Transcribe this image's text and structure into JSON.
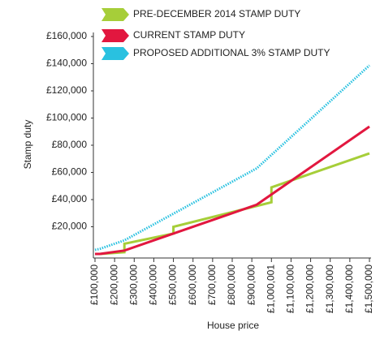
{
  "chart_data": {
    "type": "line",
    "xlabel": "House price",
    "ylabel": "Stamp duty",
    "xlim": [
      100000,
      1500000
    ],
    "xticks": [
      {
        "value": 100000,
        "label": "£100,000"
      },
      {
        "value": 200000,
        "label": "£200,000"
      },
      {
        "value": 300000,
        "label": "£300,000"
      },
      {
        "value": 400000,
        "label": "£400,000"
      },
      {
        "value": 500000,
        "label": "£500,000"
      },
      {
        "value": 600000,
        "label": "£600,000"
      },
      {
        "value": 700000,
        "label": "£700,000"
      },
      {
        "value": 800000,
        "label": "£800,000"
      },
      {
        "value": 900000,
        "label": "£900,000"
      },
      {
        "value": 1000001,
        "label": "£1,000,001"
      },
      {
        "value": 1100000,
        "label": "£1,100,000"
      },
      {
        "value": 1200000,
        "label": "£1,200,000"
      },
      {
        "value": 1300000,
        "label": "£1,300,000"
      },
      {
        "value": 1400000,
        "label": "£1,400,000"
      },
      {
        "value": 1500000,
        "label": "£1,500,000"
      }
    ],
    "ylim": [
      0,
      160000
    ],
    "yticks": [
      {
        "value": 20000,
        "label": "£20,000"
      },
      {
        "value": 40000,
        "label": "£40,000"
      },
      {
        "value": 60000,
        "label": "£60,000"
      },
      {
        "value": 80000,
        "label": "£80,000"
      },
      {
        "value": 100000,
        "label": "£100,000"
      },
      {
        "value": 120000,
        "label": "£120,000"
      },
      {
        "value": 140000,
        "label": "£140,000"
      },
      {
        "value": 160000,
        "label": "£160,000"
      }
    ],
    "series": [
      {
        "name": "PRE-DECEMBER 2014 STAMP DUTY",
        "color": "#a6ce39",
        "dash": false,
        "x": [
          100000,
          125000,
          250000,
          250001,
          500000,
          500001,
          1000000,
          1000001,
          1500000
        ],
        "values": [
          0,
          0,
          1250,
          7500,
          15000,
          20000,
          38000,
          49000,
          74000
        ]
      },
      {
        "name": "CURRENT STAMP DUTY",
        "color": "#e2173f",
        "dash": false,
        "x": [
          100000,
          125000,
          250000,
          925000,
          1500000
        ],
        "values": [
          0,
          0,
          2500,
          36250,
          93750
        ]
      },
      {
        "name": "PROPOSED ADDITIONAL 3% STAMP DUTY",
        "color": "#29c1e0",
        "dash": true,
        "x": [
          100000,
          125000,
          250000,
          925000,
          1500000
        ],
        "values": [
          3000,
          3750,
          10000,
          63000,
          138750
        ]
      }
    ]
  }
}
